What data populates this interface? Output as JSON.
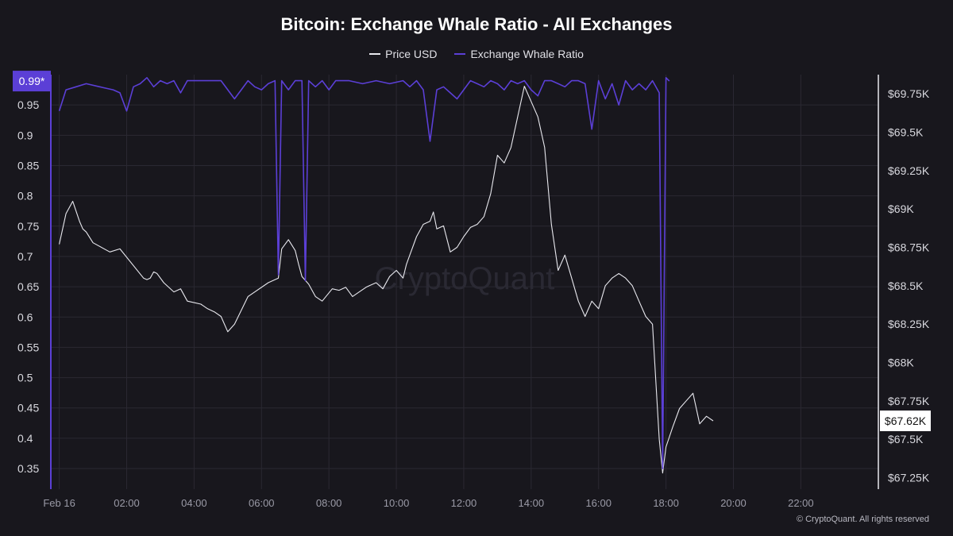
{
  "chart_data": {
    "type": "line",
    "title": "Bitcoin: Exchange Whale Ratio - All Exchanges",
    "watermark": "CryptoQuant",
    "copyright": "© CryptoQuant. All rights reserved",
    "legend_position": "top-center",
    "grid": true,
    "x_axis": {
      "range_hours": [
        -0.25,
        24.3
      ],
      "ticks": [
        {
          "h": 0,
          "label": "Feb 16"
        },
        {
          "h": 2,
          "label": "02:00"
        },
        {
          "h": 4,
          "label": "04:00"
        },
        {
          "h": 6,
          "label": "06:00"
        },
        {
          "h": 8,
          "label": "08:00"
        },
        {
          "h": 10,
          "label": "10:00"
        },
        {
          "h": 12,
          "label": "12:00"
        },
        {
          "h": 14,
          "label": "14:00"
        },
        {
          "h": 16,
          "label": "16:00"
        },
        {
          "h": 18,
          "label": "18:00"
        },
        {
          "h": 20,
          "label": "20:00"
        },
        {
          "h": 22,
          "label": "22:00"
        }
      ]
    },
    "y_left": {
      "range": [
        0.316,
        1.0
      ],
      "ticks": [
        0.35,
        0.4,
        0.45,
        0.5,
        0.55,
        0.6,
        0.65,
        0.7,
        0.75,
        0.8,
        0.85,
        0.9,
        0.95
      ],
      "tick_labels": [
        "0.35",
        "0.4",
        "0.45",
        "0.5",
        "0.55",
        "0.6",
        "0.65",
        "0.7",
        "0.75",
        "0.8",
        "0.85",
        "0.9",
        "0.95"
      ],
      "current_value_label": "0.99*",
      "current_value": 0.9894
    },
    "y_right": {
      "range": [
        67175,
        69875
      ],
      "ticks": [
        67250,
        67500,
        67750,
        68000,
        68250,
        68500,
        68750,
        69000,
        69250,
        69500,
        69750
      ],
      "tick_labels": [
        "$67.25K",
        "$67.5K",
        "$67.75K",
        "$68K",
        "$68.25K",
        "$68.5K",
        "$68.75K",
        "$69K",
        "$69.25K",
        "$69.5K",
        "$69.75K"
      ],
      "current_value_label": "$67.62K",
      "current_value": 67620
    },
    "series": [
      {
        "name": "Price USD",
        "axis": "right",
        "color": "#e8e8ee",
        "points": [
          [
            0,
            68770
          ],
          [
            0.2,
            68970
          ],
          [
            0.4,
            69050
          ],
          [
            0.6,
            68920
          ],
          [
            0.7,
            68870
          ],
          [
            0.8,
            68850
          ],
          [
            1.0,
            68780
          ],
          [
            1.5,
            68720
          ],
          [
            1.8,
            68740
          ],
          [
            2.5,
            68550
          ],
          [
            2.6,
            68540
          ],
          [
            2.7,
            68550
          ],
          [
            2.8,
            68590
          ],
          [
            2.9,
            68580
          ],
          [
            3.1,
            68520
          ],
          [
            3.4,
            68460
          ],
          [
            3.6,
            68480
          ],
          [
            3.8,
            68400
          ],
          [
            4.2,
            68380
          ],
          [
            4.4,
            68350
          ],
          [
            4.6,
            68330
          ],
          [
            4.8,
            68300
          ],
          [
            5.0,
            68200
          ],
          [
            5.2,
            68250
          ],
          [
            5.6,
            68430
          ],
          [
            6.2,
            68520
          ],
          [
            6.5,
            68550
          ],
          [
            6.6,
            68740
          ],
          [
            6.8,
            68800
          ],
          [
            7.0,
            68730
          ],
          [
            7.1,
            68640
          ],
          [
            7.2,
            68560
          ],
          [
            7.4,
            68510
          ],
          [
            7.6,
            68430
          ],
          [
            7.8,
            68400
          ],
          [
            8.1,
            68480
          ],
          [
            8.3,
            68470
          ],
          [
            8.5,
            68490
          ],
          [
            8.7,
            68430
          ],
          [
            8.9,
            68460
          ],
          [
            9.1,
            68490
          ],
          [
            9.2,
            68500
          ],
          [
            9.4,
            68520
          ],
          [
            9.6,
            68480
          ],
          [
            9.8,
            68560
          ],
          [
            10.0,
            68600
          ],
          [
            10.2,
            68550
          ],
          [
            10.3,
            68640
          ],
          [
            10.4,
            68700
          ],
          [
            10.6,
            68820
          ],
          [
            10.8,
            68900
          ],
          [
            11.0,
            68920
          ],
          [
            11.1,
            68980
          ],
          [
            11.2,
            68870
          ],
          [
            11.4,
            68890
          ],
          [
            11.6,
            68720
          ],
          [
            11.8,
            68750
          ],
          [
            12.0,
            68820
          ],
          [
            12.2,
            68880
          ],
          [
            12.4,
            68900
          ],
          [
            12.6,
            68950
          ],
          [
            12.8,
            69100
          ],
          [
            13.0,
            69350
          ],
          [
            13.2,
            69300
          ],
          [
            13.4,
            69400
          ],
          [
            13.6,
            69600
          ],
          [
            13.8,
            69800
          ],
          [
            14.0,
            69700
          ],
          [
            14.2,
            69600
          ],
          [
            14.4,
            69400
          ],
          [
            14.6,
            68900
          ],
          [
            14.8,
            68600
          ],
          [
            15.0,
            68700
          ],
          [
            15.2,
            68550
          ],
          [
            15.4,
            68400
          ],
          [
            15.6,
            68300
          ],
          [
            15.8,
            68400
          ],
          [
            16.0,
            68350
          ],
          [
            16.2,
            68500
          ],
          [
            16.4,
            68550
          ],
          [
            16.6,
            68580
          ],
          [
            16.8,
            68550
          ],
          [
            17.0,
            68500
          ],
          [
            17.2,
            68400
          ],
          [
            17.4,
            68300
          ],
          [
            17.6,
            68250
          ],
          [
            17.8,
            67500
          ],
          [
            17.9,
            67280
          ],
          [
            18.0,
            67450
          ],
          [
            18.2,
            67580
          ],
          [
            18.4,
            67700
          ],
          [
            18.6,
            67750
          ],
          [
            18.8,
            67800
          ],
          [
            19.0,
            67600
          ],
          [
            19.2,
            67650
          ],
          [
            19.4,
            67620
          ]
        ]
      },
      {
        "name": "Exchange Whale Ratio",
        "axis": "left",
        "color": "#5b3fd6",
        "points": [
          [
            0,
            0.94
          ],
          [
            0.2,
            0.975
          ],
          [
            0.5,
            0.98
          ],
          [
            0.8,
            0.985
          ],
          [
            1.2,
            0.98
          ],
          [
            1.6,
            0.975
          ],
          [
            1.8,
            0.97
          ],
          [
            2.0,
            0.94
          ],
          [
            2.2,
            0.98
          ],
          [
            2.4,
            0.985
          ],
          [
            2.6,
            0.995
          ],
          [
            2.8,
            0.98
          ],
          [
            3.0,
            0.99
          ],
          [
            3.2,
            0.985
          ],
          [
            3.4,
            0.99
          ],
          [
            3.6,
            0.97
          ],
          [
            3.8,
            0.99
          ],
          [
            4.0,
            0.99
          ],
          [
            4.4,
            0.99
          ],
          [
            4.8,
            0.99
          ],
          [
            5.2,
            0.96
          ],
          [
            5.4,
            0.975
          ],
          [
            5.6,
            0.99
          ],
          [
            5.8,
            0.98
          ],
          [
            6.0,
            0.975
          ],
          [
            6.2,
            0.985
          ],
          [
            6.4,
            0.99
          ],
          [
            6.5,
            0.67
          ],
          [
            6.6,
            0.99
          ],
          [
            6.8,
            0.975
          ],
          [
            7.0,
            0.99
          ],
          [
            7.2,
            0.99
          ],
          [
            7.3,
            0.66
          ],
          [
            7.4,
            0.99
          ],
          [
            7.6,
            0.98
          ],
          [
            7.8,
            0.99
          ],
          [
            8.0,
            0.975
          ],
          [
            8.2,
            0.99
          ],
          [
            8.6,
            0.99
          ],
          [
            9.0,
            0.985
          ],
          [
            9.4,
            0.99
          ],
          [
            9.8,
            0.985
          ],
          [
            10.2,
            0.99
          ],
          [
            10.4,
            0.98
          ],
          [
            10.6,
            0.99
          ],
          [
            10.8,
            0.975
          ],
          [
            11.0,
            0.89
          ],
          [
            11.2,
            0.975
          ],
          [
            11.4,
            0.98
          ],
          [
            11.6,
            0.97
          ],
          [
            11.8,
            0.96
          ],
          [
            12.0,
            0.975
          ],
          [
            12.2,
            0.99
          ],
          [
            12.4,
            0.985
          ],
          [
            12.6,
            0.98
          ],
          [
            12.8,
            0.99
          ],
          [
            13.0,
            0.985
          ],
          [
            13.2,
            0.975
          ],
          [
            13.4,
            0.99
          ],
          [
            13.6,
            0.985
          ],
          [
            13.8,
            0.99
          ],
          [
            14.0,
            0.975
          ],
          [
            14.2,
            0.965
          ],
          [
            14.4,
            0.99
          ],
          [
            14.6,
            0.99
          ],
          [
            14.8,
            0.985
          ],
          [
            15.0,
            0.98
          ],
          [
            15.2,
            0.99
          ],
          [
            15.4,
            0.99
          ],
          [
            15.6,
            0.985
          ],
          [
            15.8,
            0.91
          ],
          [
            16.0,
            0.99
          ],
          [
            16.2,
            0.96
          ],
          [
            16.4,
            0.985
          ],
          [
            16.6,
            0.95
          ],
          [
            16.8,
            0.99
          ],
          [
            17.0,
            0.975
          ],
          [
            17.2,
            0.985
          ],
          [
            17.4,
            0.975
          ],
          [
            17.6,
            0.99
          ],
          [
            17.8,
            0.97
          ],
          [
            17.9,
            0.35
          ],
          [
            18.0,
            0.995
          ],
          [
            18.1,
            0.9894
          ]
        ]
      }
    ]
  }
}
